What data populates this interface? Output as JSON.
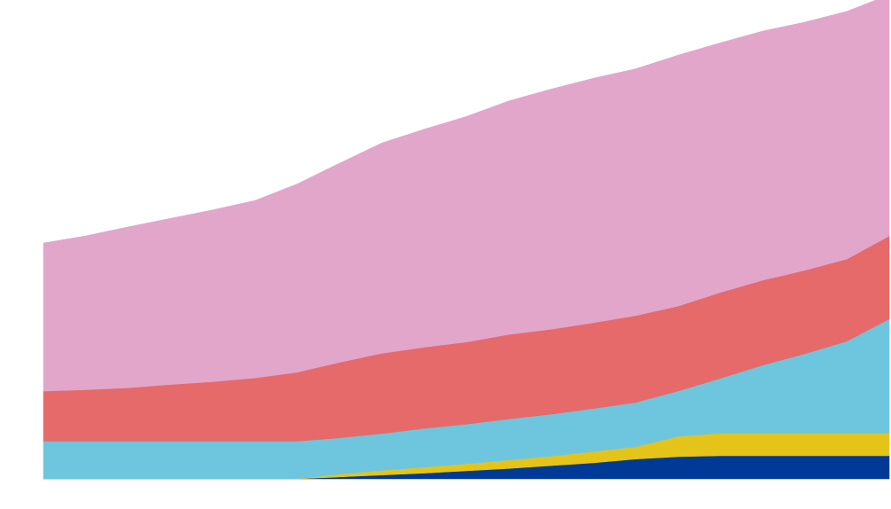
{
  "chart_data": {
    "type": "area",
    "stacked": true,
    "title": "",
    "xlabel": "",
    "ylabel": "",
    "grid": false,
    "legend": "none",
    "x": [
      0,
      5,
      10,
      15,
      20,
      25,
      30,
      35,
      40,
      45,
      50,
      55,
      60,
      65,
      70,
      75,
      80,
      85,
      90,
      95,
      100
    ],
    "xlim": [
      0,
      100
    ],
    "ylim": [
      0,
      100
    ],
    "series": [
      {
        "color": "#003a96",
        "values": [
          0,
          0,
          0,
          0,
          0,
          0,
          0,
          0.4,
          0.8,
          1.2,
          1.7,
          2.2,
          2.8,
          3.4,
          4.2,
          4.7,
          4.9,
          4.9,
          4.9,
          4.9,
          4.9
        ]
      },
      {
        "color": "#e5c41a",
        "values": [
          0,
          0,
          0,
          0,
          0,
          0,
          0,
          0.6,
          1.0,
          1.3,
          1.5,
          1.8,
          2.0,
          2.4,
          2.6,
          4.3,
          4.8,
          4.8,
          4.8,
          4.8,
          4.8
        ]
      },
      {
        "color": "#6ec6de",
        "values": [
          8.0,
          8.0,
          8.0,
          8.0,
          8.0,
          8.0,
          8.0,
          7.7,
          7.8,
          8.2,
          8.4,
          8.7,
          8.9,
          9.1,
          9.4,
          9.6,
          11.6,
          14.4,
          16.8,
          19.5,
          24.2
        ]
      },
      {
        "color": "#e56a69",
        "values": [
          10.6,
          10.9,
          11.3,
          12.0,
          12.6,
          13.4,
          14.6,
          16.0,
          17.0,
          17.2,
          17.4,
          17.9,
          18.0,
          18.2,
          18.4,
          18.0,
          18.2,
          18.0,
          17.7,
          17.4,
          17.6
        ]
      },
      {
        "color": "#e2a6cb",
        "values": [
          31.4,
          32.6,
          34.1,
          35.2,
          36.4,
          37.6,
          39.9,
          42.2,
          44.6,
          46.2,
          47.8,
          49.5,
          50.9,
          51.8,
          52.3,
          53.2,
          52.9,
          52.8,
          52.6,
          52.5,
          51.1
        ]
      }
    ]
  }
}
